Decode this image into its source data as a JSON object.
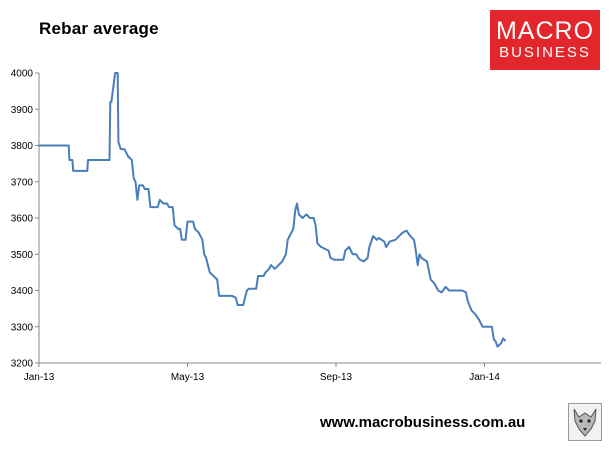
{
  "chart_title": "Rebar average",
  "logo": {
    "line1": "MACRO",
    "line2": "BUSINESS"
  },
  "footer": {
    "url": "www.macrobusiness.com.au"
  },
  "colors": {
    "line": "#4a7ebb",
    "logo_bg": "#e3262b",
    "axis": "#888888"
  },
  "chart_data": {
    "type": "line",
    "title": "Rebar average",
    "xlabel": "",
    "ylabel": "",
    "ylim": [
      3200,
      4000
    ],
    "yticks": [
      3200,
      3300,
      3400,
      3500,
      3600,
      3700,
      3800,
      3900,
      4000
    ],
    "xtick_labels": [
      "Jan-13",
      "May-13",
      "Sep-13",
      "Jan-14"
    ],
    "xlim": [
      0,
      14.6
    ],
    "xtick_positions": [
      0,
      4,
      8,
      12
    ],
    "grid": false,
    "legend": "none",
    "series": [
      {
        "values": [
          [
            0.0,
            3800
          ],
          [
            0.8,
            3800
          ],
          [
            0.82,
            3760
          ],
          [
            0.9,
            3760
          ],
          [
            0.92,
            3730
          ],
          [
            1.2,
            3730
          ],
          [
            1.3,
            3730
          ],
          [
            1.32,
            3760
          ],
          [
            1.9,
            3760
          ],
          [
            1.92,
            3920
          ],
          [
            1.95,
            3920
          ],
          [
            2.05,
            4000
          ],
          [
            2.12,
            4000
          ],
          [
            2.14,
            3810
          ],
          [
            2.2,
            3790
          ],
          [
            2.3,
            3790
          ],
          [
            2.4,
            3770
          ],
          [
            2.5,
            3760
          ],
          [
            2.55,
            3710
          ],
          [
            2.6,
            3700
          ],
          [
            2.65,
            3650
          ],
          [
            2.7,
            3690
          ],
          [
            2.8,
            3690
          ],
          [
            2.85,
            3680
          ],
          [
            2.95,
            3680
          ],
          [
            3.0,
            3630
          ],
          [
            3.2,
            3630
          ],
          [
            3.25,
            3650
          ],
          [
            3.35,
            3640
          ],
          [
            3.45,
            3640
          ],
          [
            3.5,
            3630
          ],
          [
            3.6,
            3630
          ],
          [
            3.65,
            3580
          ],
          [
            3.75,
            3570
          ],
          [
            3.8,
            3570
          ],
          [
            3.85,
            3540
          ],
          [
            3.95,
            3540
          ],
          [
            4.0,
            3590
          ],
          [
            4.15,
            3590
          ],
          [
            4.2,
            3570
          ],
          [
            4.3,
            3560
          ],
          [
            4.4,
            3540
          ],
          [
            4.45,
            3500
          ],
          [
            4.5,
            3490
          ],
          [
            4.55,
            3470
          ],
          [
            4.6,
            3450
          ],
          [
            4.7,
            3440
          ],
          [
            4.8,
            3430
          ],
          [
            4.85,
            3385
          ],
          [
            5.2,
            3385
          ],
          [
            5.3,
            3380
          ],
          [
            5.35,
            3360
          ],
          [
            5.5,
            3360
          ],
          [
            5.55,
            3380
          ],
          [
            5.6,
            3400
          ],
          [
            5.65,
            3405
          ],
          [
            5.85,
            3405
          ],
          [
            5.9,
            3440
          ],
          [
            6.05,
            3440
          ],
          [
            6.1,
            3450
          ],
          [
            6.2,
            3460
          ],
          [
            6.25,
            3470
          ],
          [
            6.35,
            3460
          ],
          [
            6.45,
            3470
          ],
          [
            6.55,
            3480
          ],
          [
            6.65,
            3500
          ],
          [
            6.7,
            3540
          ],
          [
            6.8,
            3560
          ],
          [
            6.85,
            3570
          ],
          [
            6.9,
            3620
          ],
          [
            6.95,
            3640
          ],
          [
            7.0,
            3610
          ],
          [
            7.1,
            3600
          ],
          [
            7.2,
            3610
          ],
          [
            7.3,
            3600
          ],
          [
            7.4,
            3600
          ],
          [
            7.45,
            3580
          ],
          [
            7.5,
            3530
          ],
          [
            7.6,
            3520
          ],
          [
            7.8,
            3510
          ],
          [
            7.85,
            3490
          ],
          [
            7.95,
            3485
          ],
          [
            8.2,
            3485
          ],
          [
            8.25,
            3510
          ],
          [
            8.35,
            3520
          ],
          [
            8.45,
            3500
          ],
          [
            8.55,
            3500
          ],
          [
            8.6,
            3490
          ],
          [
            8.65,
            3485
          ],
          [
            8.75,
            3480
          ],
          [
            8.85,
            3490
          ],
          [
            8.9,
            3520
          ],
          [
            9.0,
            3550
          ],
          [
            9.1,
            3540
          ],
          [
            9.15,
            3545
          ],
          [
            9.3,
            3535
          ],
          [
            9.35,
            3520
          ],
          [
            9.45,
            3535
          ],
          [
            9.6,
            3540
          ],
          [
            9.7,
            3550
          ],
          [
            9.8,
            3560
          ],
          [
            9.9,
            3565
          ],
          [
            10.0,
            3550
          ],
          [
            10.1,
            3540
          ],
          [
            10.15,
            3510
          ],
          [
            10.2,
            3470
          ],
          [
            10.25,
            3500
          ],
          [
            10.3,
            3490
          ],
          [
            10.45,
            3480
          ],
          [
            10.55,
            3430
          ],
          [
            10.65,
            3420
          ],
          [
            10.75,
            3400
          ],
          [
            10.85,
            3395
          ],
          [
            10.95,
            3410
          ],
          [
            11.05,
            3400
          ],
          [
            11.4,
            3400
          ],
          [
            11.5,
            3395
          ],
          [
            11.55,
            3370
          ],
          [
            11.65,
            3345
          ],
          [
            11.75,
            3335
          ],
          [
            11.85,
            3320
          ],
          [
            11.95,
            3300
          ],
          [
            12.1,
            3300
          ],
          [
            12.2,
            3300
          ],
          [
            12.25,
            3265
          ],
          [
            12.3,
            3260
          ],
          [
            12.35,
            3245
          ],
          [
            12.45,
            3255
          ],
          [
            12.5,
            3268
          ],
          [
            12.55,
            3262
          ]
        ]
      }
    ]
  }
}
